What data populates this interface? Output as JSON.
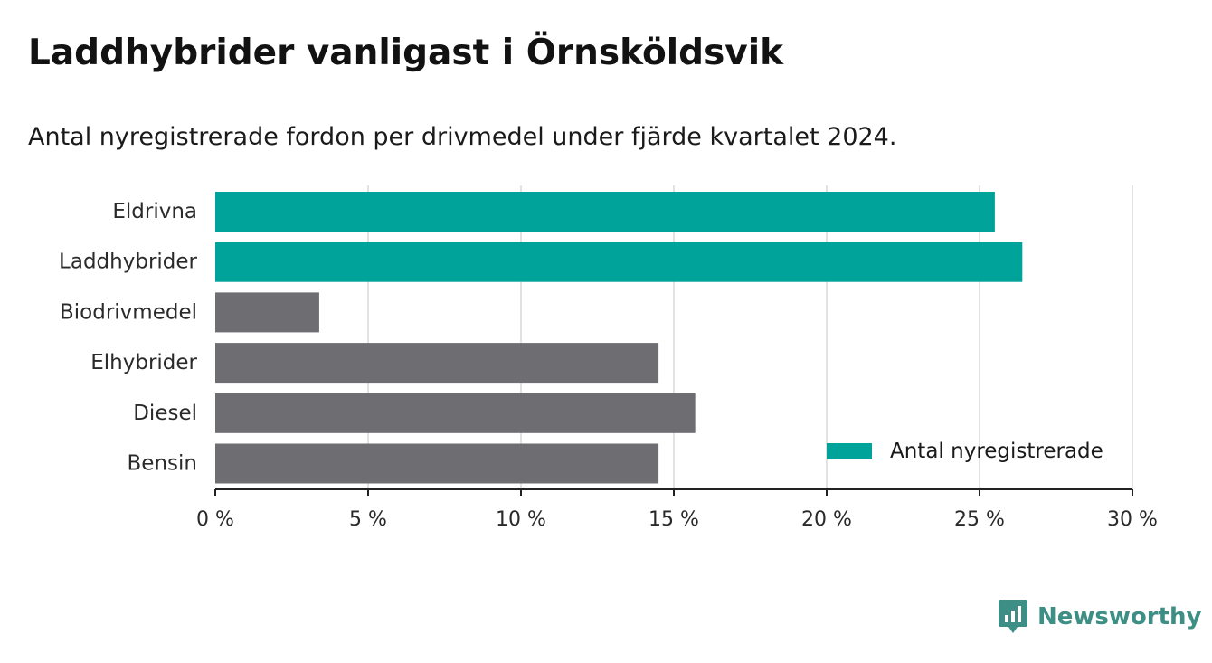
{
  "title": "Laddhybrider vanligast i Örnsköldsvik",
  "subtitle": "Antal nyregistrerade fordon per drivmedel under fjärde kvartalet 2024.",
  "brand": {
    "name": "Newsworthy",
    "icon": "newsworthy-logo-icon",
    "color": "#3d8f86"
  },
  "colors": {
    "highlight": "#00a39a",
    "default": "#6e6d72",
    "grid": "#d9d9d9",
    "axis": "#222222"
  },
  "chart_data": {
    "type": "bar",
    "orientation": "horizontal",
    "categories": [
      "Eldrivna",
      "Laddhybrider",
      "Biodrivmedel",
      "Elhybrider",
      "Diesel",
      "Bensin"
    ],
    "values": [
      25.5,
      26.4,
      3.4,
      14.5,
      15.7,
      14.5
    ],
    "highlight": [
      true,
      true,
      false,
      false,
      false,
      false
    ],
    "xlim": [
      0,
      30
    ],
    "xticks": [
      0,
      5,
      10,
      15,
      20,
      25,
      30
    ],
    "xtick_labels": [
      "0 %",
      "5 %",
      "10 %",
      "15 %",
      "20 %",
      "25 %",
      "30 %"
    ],
    "grid": true,
    "legend": {
      "label": "Antal nyregistrerade",
      "position": "bottom-right"
    }
  }
}
